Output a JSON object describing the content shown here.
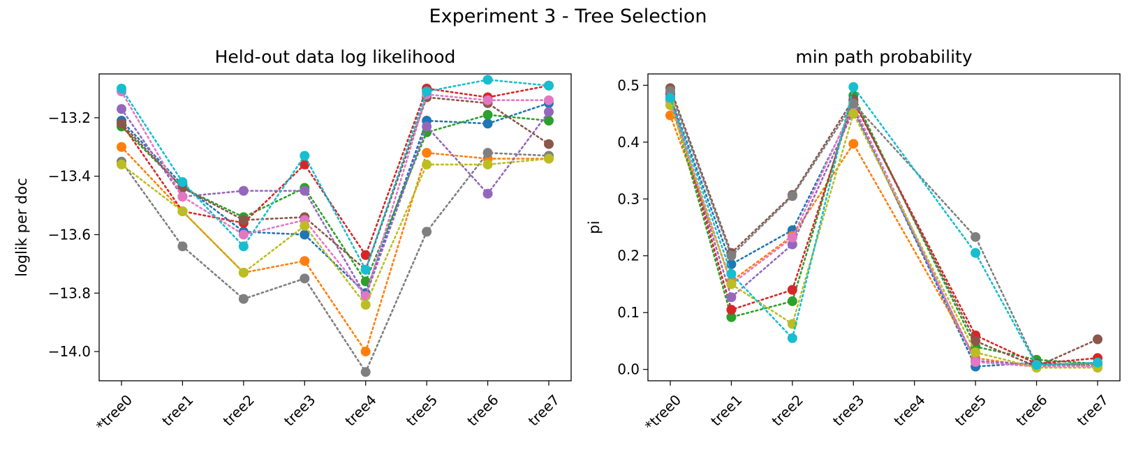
{
  "figure": {
    "title": "Experiment 3 - Tree Selection"
  },
  "chart_data": [
    {
      "type": "line",
      "title": "Held-out data log likelihood",
      "xlabel": "",
      "ylabel": "loglik per doc",
      "ylim": [
        -14.1,
        -13.05
      ],
      "yticks": [
        -13.2,
        -13.4,
        -13.6,
        -13.8,
        -14.0
      ],
      "ytick_labels": [
        "−13.2",
        "−13.4",
        "−13.6",
        "−13.8",
        "−14.0"
      ],
      "categories": [
        "*tree0",
        "tree1",
        "tree2",
        "tree3",
        "tree4",
        "tree5",
        "tree6",
        "tree7"
      ],
      "series": [
        {
          "color": "#1f77b4",
          "values": [
            -13.21,
            -13.43,
            -13.59,
            -13.6,
            -13.8,
            -13.21,
            -13.22,
            -13.15
          ]
        },
        {
          "color": "#ff7f0e",
          "values": [
            -13.3,
            -13.52,
            -13.73,
            -13.69,
            -14.0,
            -13.32,
            -13.34,
            -13.34
          ]
        },
        {
          "color": "#2ca02c",
          "values": [
            -13.23,
            -13.44,
            -13.54,
            -13.44,
            -13.76,
            -13.25,
            -13.19,
            -13.21
          ]
        },
        {
          "color": "#d62728",
          "values": [
            -13.22,
            -13.52,
            -13.56,
            -13.36,
            -13.67,
            -13.1,
            -13.13,
            -13.09
          ]
        },
        {
          "color": "#9467bd",
          "values": [
            -13.17,
            -13.47,
            -13.45,
            -13.45,
            -13.81,
            -13.23,
            -13.46,
            -13.18
          ]
        },
        {
          "color": "#8c564b",
          "values": [
            -13.22,
            -13.44,
            -13.55,
            -13.54,
            -13.72,
            -13.13,
            -13.15,
            -13.29
          ]
        },
        {
          "color": "#e377c2",
          "values": [
            -13.11,
            -13.47,
            -13.6,
            -13.55,
            -13.81,
            -13.12,
            -13.14,
            -13.14
          ]
        },
        {
          "color": "#7f7f7f",
          "values": [
            -13.35,
            -13.64,
            -13.82,
            -13.75,
            -14.07,
            -13.59,
            -13.32,
            -13.33
          ]
        },
        {
          "color": "#bcbd22",
          "values": [
            -13.36,
            -13.52,
            -13.73,
            -13.57,
            -13.84,
            -13.36,
            -13.36,
            -13.34
          ]
        },
        {
          "color": "#17becf",
          "values": [
            -13.1,
            -13.42,
            -13.64,
            -13.33,
            -13.72,
            -13.11,
            -13.07,
            -13.09
          ]
        }
      ]
    },
    {
      "type": "line",
      "title": "min path probability",
      "xlabel": "",
      "ylabel": "pi",
      "ylim": [
        -0.02,
        0.52
      ],
      "yticks": [
        0.0,
        0.1,
        0.2,
        0.3,
        0.4,
        0.5
      ],
      "ytick_labels": [
        "0.0",
        "0.1",
        "0.2",
        "0.3",
        "0.4",
        "0.5"
      ],
      "categories": [
        "*tree0",
        "tree1",
        "tree2",
        "tree3",
        "tree4",
        "tree5",
        "tree6",
        "tree7"
      ],
      "series": [
        {
          "color": "#1f77b4",
          "values": [
            0.48,
            0.185,
            0.245,
            0.46,
            null,
            0.005,
            0.012,
            0.006
          ]
        },
        {
          "color": "#ff7f0e",
          "values": [
            0.447,
            0.155,
            0.235,
            0.397,
            null,
            0.02,
            0.005,
            0.01
          ]
        },
        {
          "color": "#2ca02c",
          "values": [
            0.475,
            0.092,
            0.12,
            0.482,
            null,
            0.04,
            0.017,
            0.01
          ]
        },
        {
          "color": "#d62728",
          "values": [
            0.485,
            0.105,
            0.14,
            0.472,
            null,
            0.06,
            0.01,
            0.02
          ]
        },
        {
          "color": "#9467bd",
          "values": [
            0.478,
            0.127,
            0.22,
            0.455,
            null,
            0.015,
            0.008,
            0.005
          ]
        },
        {
          "color": "#8c564b",
          "values": [
            0.495,
            0.205,
            0.307,
            0.475,
            null,
            0.05,
            0.005,
            0.053
          ]
        },
        {
          "color": "#e377c2",
          "values": [
            0.472,
            0.15,
            0.232,
            0.465,
            null,
            0.013,
            0.005,
            0.006
          ]
        },
        {
          "color": "#7f7f7f",
          "values": [
            0.49,
            0.2,
            0.305,
            0.468,
            null,
            0.233,
            0.008,
            0.01
          ]
        },
        {
          "color": "#bcbd22",
          "values": [
            0.465,
            0.15,
            0.08,
            0.45,
            null,
            0.03,
            0.003,
            0.003
          ]
        },
        {
          "color": "#17becf",
          "values": [
            0.478,
            0.168,
            0.055,
            0.497,
            null,
            0.205,
            0.008,
            0.012
          ]
        }
      ]
    }
  ]
}
